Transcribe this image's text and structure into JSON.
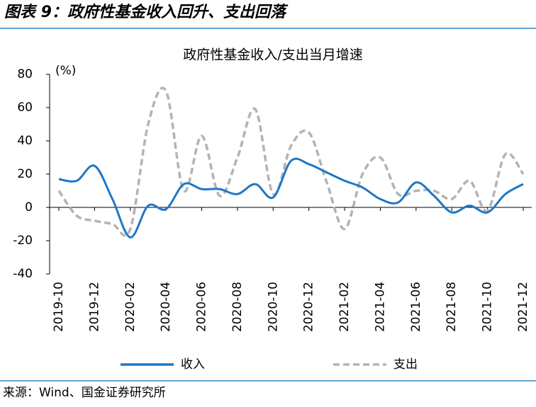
{
  "header": {
    "title": "图表 9：政府性基金收入回升、支出回落"
  },
  "source": "来源：Wind、国金证券研究所",
  "chart_data": {
    "type": "line",
    "title": "政府性基金收入/支出当月增速",
    "y_label": "(%)",
    "categories": [
      "2019-10",
      null,
      "2019-12",
      null,
      "2020-02",
      null,
      "2020-04",
      null,
      "2020-06",
      null,
      "2020-08",
      null,
      "2020-10",
      null,
      "2020-12",
      null,
      "2021-02",
      null,
      "2021-04",
      null,
      "2021-06",
      null,
      "2021-08",
      null,
      "2021-10",
      null,
      "2021-12"
    ],
    "series": [
      {
        "name": "收入",
        "color": "#1f77c4",
        "dashed": false,
        "values": [
          17,
          16,
          25,
          5,
          -18,
          1,
          -1,
          14,
          11,
          11,
          8,
          14,
          6,
          28,
          26,
          21,
          16,
          12,
          5,
          3,
          15,
          7,
          -3,
          1,
          -3,
          8,
          14
        ]
      },
      {
        "name": "支出",
        "color": "#b3b3b3",
        "dashed": true,
        "values": [
          10,
          -5,
          -8,
          -10,
          -13,
          50,
          70,
          10,
          43,
          7,
          30,
          59,
          8,
          37,
          45,
          15,
          -13,
          20,
          30,
          8,
          10,
          10,
          5,
          16,
          -2,
          32,
          20
        ]
      }
    ],
    "ylim": [
      -40,
      80
    ],
    "yticks": [
      -40,
      -20,
      0,
      20,
      40,
      60,
      80
    ],
    "grid": false
  }
}
